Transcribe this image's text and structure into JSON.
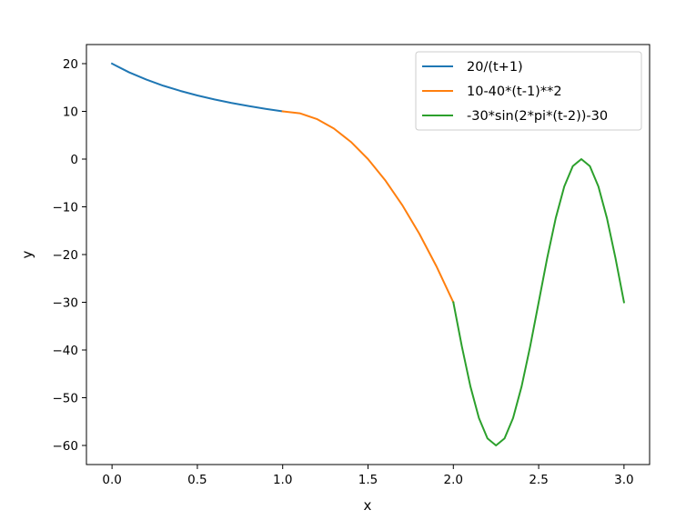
{
  "chart_data": {
    "type": "line",
    "title": "",
    "xlabel": "x",
    "ylabel": "y",
    "xlim": [
      -0.15,
      3.15
    ],
    "ylim": [
      -64,
      24
    ],
    "x_ticks": [
      0.0,
      0.5,
      1.0,
      1.5,
      2.0,
      2.5,
      3.0
    ],
    "x_tick_labels": [
      "0.0",
      "0.5",
      "1.0",
      "1.5",
      "2.0",
      "2.5",
      "3.0"
    ],
    "y_ticks": [
      20,
      10,
      0,
      -10,
      -20,
      -30,
      -40,
      -50,
      -60
    ],
    "y_tick_labels": [
      "20",
      "10",
      "0",
      "−10",
      "−20",
      "−30",
      "−40",
      "−50",
      "−60"
    ],
    "grid": false,
    "legend_position": "upper-right",
    "series": [
      {
        "name": "20/(t+1)",
        "color": "#1f77b4",
        "x": [
          0.0,
          0.1,
          0.2,
          0.3,
          0.4,
          0.5,
          0.6,
          0.7,
          0.8,
          0.9,
          1.0
        ],
        "y": [
          20.0,
          18.18,
          16.67,
          15.38,
          14.29,
          13.33,
          12.5,
          11.76,
          11.11,
          10.53,
          10.0
        ]
      },
      {
        "name": "10-40*(t-1)**2",
        "color": "#ff7f0e",
        "x": [
          1.0,
          1.1,
          1.2,
          1.3,
          1.4,
          1.5,
          1.6,
          1.7,
          1.8,
          1.9,
          2.0
        ],
        "y": [
          10.0,
          9.6,
          8.4,
          6.4,
          3.6,
          0.0,
          -4.4,
          -9.6,
          -15.6,
          -22.4,
          -30.0
        ]
      },
      {
        "name": "-30*sin(2*pi*(t-2))-30",
        "color": "#2ca02c",
        "x": [
          2.0,
          2.05,
          2.1,
          2.15,
          2.2,
          2.25,
          2.3,
          2.35,
          2.4,
          2.45,
          2.5,
          2.55,
          2.6,
          2.65,
          2.7,
          2.75,
          2.8,
          2.85,
          2.9,
          2.95,
          3.0
        ],
        "y": [
          -30.0,
          -39.27,
          -47.63,
          -54.27,
          -58.53,
          -60.0,
          -58.53,
          -54.27,
          -47.63,
          -39.27,
          -30.0,
          -20.73,
          -12.37,
          -5.73,
          -1.47,
          0.0,
          -1.47,
          -5.73,
          -12.37,
          -20.73,
          -30.0
        ]
      }
    ]
  }
}
